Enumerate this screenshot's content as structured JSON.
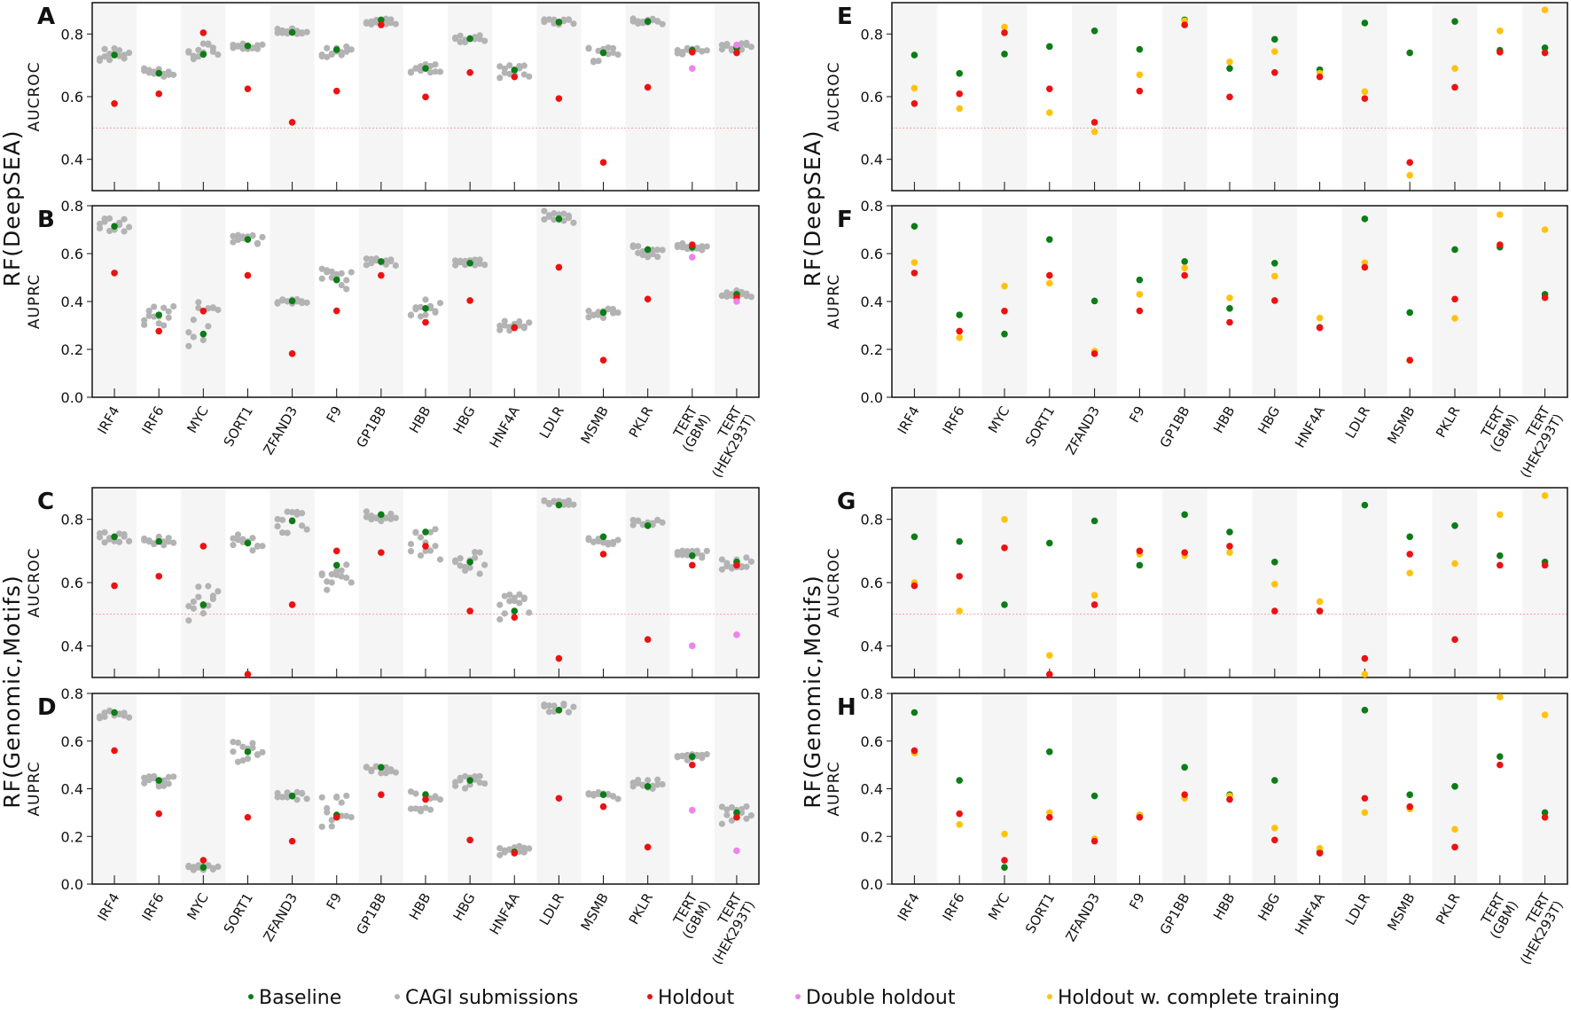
{
  "colors": {
    "baseline": "#0a7d16",
    "cagi": "#b3b3b3",
    "holdout": "#ee1111",
    "double": "#ee82ee",
    "complete": "#ffc20e",
    "refline": "#f4a0a8",
    "band": "#f5f5f5"
  },
  "legend": [
    {
      "key": "baseline",
      "label": "Baseline"
    },
    {
      "key": "cagi",
      "label": "CAGI submissions"
    },
    {
      "key": "holdout",
      "label": "Holdout"
    },
    {
      "key": "double",
      "label": "Double holdout"
    },
    {
      "key": "complete",
      "label": "Holdout w. complete training"
    }
  ],
  "row_labels": [
    "RF(DeepSEA)",
    "RF(Genomic,Motifs)"
  ],
  "genes": [
    "IRF4",
    "IRF6",
    "MYC",
    "SORT1",
    "ZFAND3",
    "F9",
    "GP1BB",
    "HBB",
    "HBG",
    "HNF4A",
    "LDLR",
    "MSMB",
    "PKLR",
    "TERT\n(GBM)",
    "TERT\n(HEK293T)"
  ],
  "chart_data": [
    {
      "panel": "A",
      "type": "scatter",
      "ylabel": "AUCROC",
      "ylim": [
        0.3,
        0.9
      ],
      "yticks": [
        0.4,
        0.6,
        0.8
      ],
      "refline": 0.5,
      "baseline": [
        0.733,
        0.675,
        0.735,
        0.762,
        0.805,
        0.75,
        0.845,
        0.69,
        0.785,
        0.685,
        0.838,
        0.74,
        0.84,
        0.748,
        0.756
      ],
      "holdout": [
        0.578,
        0.609,
        0.804,
        0.625,
        0.518,
        0.618,
        0.829,
        0.599,
        0.677,
        0.663,
        0.594,
        0.39,
        0.63,
        0.742,
        0.74
      ],
      "double": [
        null,
        null,
        null,
        null,
        null,
        null,
        null,
        null,
        null,
        null,
        null,
        null,
        null,
        0.69,
        0.765
      ],
      "cagi_center": [
        0.735,
        0.675,
        0.745,
        0.76,
        0.81,
        0.75,
        0.84,
        0.69,
        0.785,
        0.68,
        0.84,
        0.735,
        0.84,
        0.745,
        0.76
      ],
      "cagi_spread": [
        0.02,
        0.015,
        0.025,
        0.01,
        0.01,
        0.025,
        0.01,
        0.015,
        0.012,
        0.02,
        0.01,
        0.025,
        0.01,
        0.01,
        0.012
      ]
    },
    {
      "panel": "B",
      "type": "scatter",
      "ylabel": "AUPRC",
      "ylim": [
        0,
        0.8
      ],
      "yticks": [
        0.0,
        0.2,
        0.4,
        0.6,
        0.8
      ],
      "baseline": [
        0.714,
        0.344,
        0.264,
        0.659,
        0.402,
        0.49,
        0.567,
        0.371,
        0.56,
        0.292,
        0.745,
        0.354,
        0.617,
        0.627,
        0.43
      ],
      "holdout": [
        0.519,
        0.276,
        0.36,
        0.509,
        0.182,
        0.361,
        0.509,
        0.313,
        0.404,
        0.29,
        0.543,
        0.155,
        0.41,
        0.637,
        0.416
      ],
      "double": [
        null,
        null,
        null,
        null,
        null,
        null,
        null,
        null,
        null,
        null,
        null,
        null,
        null,
        0.585,
        0.4
      ],
      "cagi_center": [
        0.72,
        0.34,
        0.31,
        0.66,
        0.4,
        0.5,
        0.565,
        0.37,
        0.56,
        0.3,
        0.75,
        0.35,
        0.61,
        0.63,
        0.43
      ],
      "cagi_spread": [
        0.03,
        0.04,
        0.1,
        0.02,
        0.01,
        0.05,
        0.015,
        0.04,
        0.015,
        0.025,
        0.04,
        0.02,
        0.025,
        0.02,
        0.02
      ]
    },
    {
      "panel": "C",
      "type": "scatter",
      "ylabel": "AUCROC",
      "ylim": [
        0.3,
        0.9
      ],
      "yticks": [
        0.4,
        0.6,
        0.8
      ],
      "refline": 0.5,
      "baseline": [
        0.745,
        0.73,
        0.53,
        0.725,
        0.795,
        0.655,
        0.815,
        0.76,
        0.665,
        0.51,
        0.845,
        0.745,
        0.78,
        0.685,
        0.665
      ],
      "holdout": [
        0.59,
        0.62,
        0.715,
        0.31,
        0.53,
        0.7,
        0.695,
        0.715,
        0.51,
        0.49,
        0.36,
        0.69,
        0.42,
        0.655,
        0.655
      ],
      "double": [
        null,
        null,
        null,
        null,
        null,
        null,
        null,
        null,
        null,
        null,
        null,
        null,
        null,
        0.4,
        0.435
      ],
      "cagi_center": [
        0.74,
        0.73,
        0.54,
        0.725,
        0.79,
        0.625,
        0.81,
        0.72,
        0.66,
        0.52,
        0.85,
        0.73,
        0.79,
        0.69,
        0.66
      ],
      "cagi_spread": [
        0.02,
        0.015,
        0.07,
        0.03,
        0.035,
        0.05,
        0.02,
        0.05,
        0.04,
        0.05,
        0.01,
        0.015,
        0.01,
        0.012,
        0.02
      ]
    },
    {
      "panel": "D",
      "type": "scatter",
      "ylabel": "AUPRC",
      "ylim": [
        0,
        0.8
      ],
      "yticks": [
        0.0,
        0.2,
        0.4,
        0.6,
        0.8
      ],
      "baseline": [
        0.72,
        0.435,
        0.07,
        0.555,
        0.37,
        0.29,
        0.49,
        0.375,
        0.435,
        0.135,
        0.73,
        0.375,
        0.41,
        0.535,
        0.3
      ],
      "holdout": [
        0.56,
        0.295,
        0.1,
        0.28,
        0.18,
        0.28,
        0.375,
        0.355,
        0.185,
        0.13,
        0.36,
        0.325,
        0.155,
        0.5,
        0.28
      ],
      "double": [
        null,
        null,
        null,
        null,
        null,
        null,
        null,
        null,
        null,
        null,
        null,
        null,
        null,
        0.31,
        0.14
      ],
      "cagi_center": [
        0.71,
        0.43,
        0.065,
        0.55,
        0.37,
        0.3,
        0.48,
        0.35,
        0.43,
        0.14,
        0.74,
        0.37,
        0.42,
        0.53,
        0.29
      ],
      "cagi_spread": [
        0.02,
        0.025,
        0.015,
        0.06,
        0.02,
        0.08,
        0.015,
        0.06,
        0.03,
        0.02,
        0.02,
        0.015,
        0.02,
        0.02,
        0.04
      ]
    },
    {
      "panel": "E",
      "type": "scatter",
      "ylabel": "AUCROC",
      "ylim": [
        0.3,
        0.9
      ],
      "yticks": [
        0.4,
        0.6,
        0.8
      ],
      "refline": 0.5,
      "baseline": [
        0.733,
        0.674,
        0.736,
        0.76,
        0.81,
        0.751,
        0.845,
        0.69,
        0.783,
        0.686,
        0.835,
        0.74,
        0.84,
        0.748,
        0.756
      ],
      "holdout": [
        0.578,
        0.609,
        0.804,
        0.625,
        0.518,
        0.618,
        0.829,
        0.599,
        0.677,
        0.663,
        0.594,
        0.39,
        0.63,
        0.742,
        0.74
      ],
      "complete": [
        0.627,
        0.562,
        0.822,
        0.549,
        0.488,
        0.67,
        0.842,
        0.711,
        0.744,
        0.675,
        0.616,
        0.349,
        0.69,
        0.81,
        0.877
      ]
    },
    {
      "panel": "F",
      "type": "scatter",
      "ylabel": "AUPRC",
      "ylim": [
        0,
        0.8
      ],
      "yticks": [
        0.0,
        0.2,
        0.4,
        0.6,
        0.8
      ],
      "baseline": [
        0.714,
        0.344,
        0.264,
        0.659,
        0.402,
        0.49,
        0.567,
        0.371,
        0.56,
        0.292,
        0.745,
        0.354,
        0.617,
        0.627,
        0.43
      ],
      "holdout": [
        0.519,
        0.276,
        0.36,
        0.509,
        0.182,
        0.361,
        0.509,
        0.313,
        0.404,
        0.29,
        0.543,
        0.155,
        0.41,
        0.637,
        0.416
      ],
      "complete": [
        0.563,
        0.249,
        0.464,
        0.476,
        0.193,
        0.43,
        0.54,
        0.415,
        0.506,
        0.331,
        0.562,
        0.154,
        0.33,
        0.763,
        0.7
      ]
    },
    {
      "panel": "G",
      "type": "scatter",
      "ylabel": "AUCROC",
      "ylim": [
        0.3,
        0.9
      ],
      "yticks": [
        0.4,
        0.6,
        0.8
      ],
      "refline": 0.5,
      "baseline": [
        0.745,
        0.73,
        0.53,
        0.725,
        0.795,
        0.655,
        0.815,
        0.76,
        0.665,
        0.51,
        0.845,
        0.745,
        0.78,
        0.685,
        0.665
      ],
      "holdout": [
        0.59,
        0.62,
        0.71,
        0.31,
        0.53,
        0.7,
        0.695,
        0.715,
        0.51,
        0.51,
        0.36,
        0.69,
        0.42,
        0.655,
        0.655
      ],
      "complete": [
        0.6,
        0.51,
        0.8,
        0.37,
        0.56,
        0.69,
        0.685,
        0.695,
        0.595,
        0.54,
        0.31,
        0.63,
        0.66,
        0.815,
        0.875
      ]
    },
    {
      "panel": "H",
      "type": "scatter",
      "ylabel": "AUPRC",
      "ylim": [
        0,
        0.8
      ],
      "yticks": [
        0.0,
        0.2,
        0.4,
        0.6,
        0.8
      ],
      "baseline": [
        0.72,
        0.435,
        0.07,
        0.555,
        0.37,
        0.29,
        0.49,
        0.375,
        0.435,
        0.135,
        0.73,
        0.375,
        0.41,
        0.535,
        0.3
      ],
      "holdout": [
        0.56,
        0.295,
        0.1,
        0.28,
        0.18,
        0.28,
        0.375,
        0.355,
        0.185,
        0.13,
        0.36,
        0.325,
        0.155,
        0.5,
        0.28
      ],
      "complete": [
        0.55,
        0.25,
        0.21,
        0.3,
        0.19,
        0.29,
        0.36,
        0.37,
        0.235,
        0.15,
        0.3,
        0.315,
        0.23,
        0.785,
        0.71
      ]
    }
  ]
}
